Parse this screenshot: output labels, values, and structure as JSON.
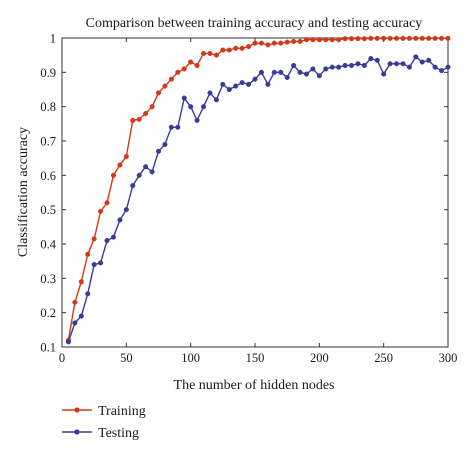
{
  "chart_data": {
    "type": "line",
    "title": "Comparison between training accuracy and testing accuracy",
    "xlabel": "The number of hidden nodes",
    "ylabel": "Classification accuracy",
    "xlim": [
      0,
      300
    ],
    "ylim": [
      0.1,
      1.0
    ],
    "xticks": [
      0,
      50,
      100,
      150,
      200,
      250,
      300
    ],
    "yticks": [
      0.1,
      0.2,
      0.3,
      0.4,
      0.5,
      0.6,
      0.7,
      0.8,
      0.9,
      1.0
    ],
    "ytick_labels": [
      "0.1",
      "0.2",
      "0.3",
      "0.4",
      "0.5",
      "0.6",
      "0.7",
      "0.8",
      "0.9",
      "1"
    ],
    "grid": false,
    "legend_position": "bottom-left",
    "x": [
      5,
      10,
      15,
      20,
      25,
      30,
      35,
      40,
      45,
      50,
      55,
      60,
      65,
      70,
      75,
      80,
      85,
      90,
      95,
      100,
      105,
      110,
      115,
      120,
      125,
      130,
      135,
      140,
      145,
      150,
      155,
      160,
      165,
      170,
      175,
      180,
      185,
      190,
      195,
      200,
      205,
      210,
      215,
      220,
      225,
      230,
      235,
      240,
      245,
      250,
      255,
      260,
      265,
      270,
      275,
      280,
      285,
      290,
      295,
      300
    ],
    "series": [
      {
        "name": "Training",
        "color": "#d03a1a",
        "marker": "circle",
        "values": [
          0.12,
          0.23,
          0.29,
          0.37,
          0.415,
          0.495,
          0.52,
          0.6,
          0.63,
          0.655,
          0.76,
          0.763,
          0.78,
          0.8,
          0.84,
          0.86,
          0.88,
          0.9,
          0.91,
          0.93,
          0.92,
          0.955,
          0.955,
          0.95,
          0.965,
          0.965,
          0.97,
          0.97,
          0.975,
          0.985,
          0.985,
          0.98,
          0.985,
          0.985,
          0.988,
          0.99,
          0.99,
          0.995,
          0.995,
          0.995,
          0.995,
          0.995,
          0.995,
          0.998,
          0.998,
          0.998,
          0.998,
          0.999,
          0.999,
          0.999,
          0.999,
          0.999,
          0.999,
          0.999,
          0.999,
          0.999,
          0.999,
          0.999,
          0.999,
          0.999
        ]
      },
      {
        "name": "Testing",
        "color": "#3a3a9a",
        "marker": "circle",
        "values": [
          0.115,
          0.17,
          0.19,
          0.255,
          0.34,
          0.345,
          0.41,
          0.42,
          0.47,
          0.5,
          0.57,
          0.6,
          0.625,
          0.61,
          0.67,
          0.69,
          0.74,
          0.74,
          0.825,
          0.8,
          0.76,
          0.8,
          0.84,
          0.82,
          0.865,
          0.85,
          0.86,
          0.87,
          0.865,
          0.88,
          0.9,
          0.865,
          0.9,
          0.9,
          0.885,
          0.92,
          0.9,
          0.895,
          0.91,
          0.89,
          0.91,
          0.915,
          0.915,
          0.92,
          0.92,
          0.925,
          0.92,
          0.94,
          0.935,
          0.895,
          0.925,
          0.925,
          0.925,
          0.915,
          0.945,
          0.93,
          0.935,
          0.915,
          0.905,
          0.915
        ]
      }
    ]
  }
}
